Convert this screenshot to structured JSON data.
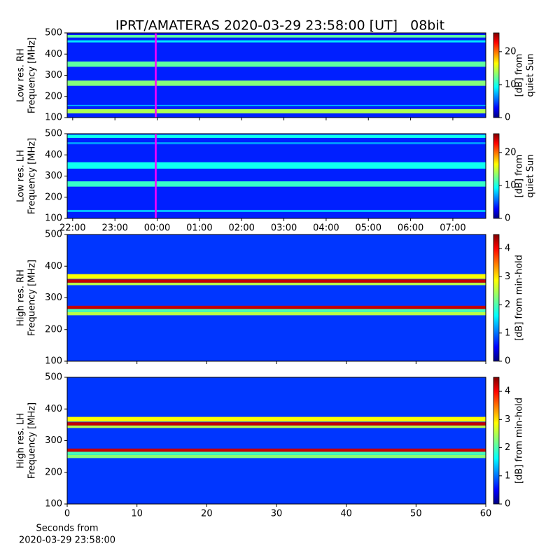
{
  "title": "IPRT/AMATERAS 2020-03-29 23:58:00 [UT]   08bit",
  "chart_data": [
    {
      "type": "heatmap",
      "ylabel": [
        "Low res. RH",
        "Frequency [MHz]"
      ],
      "colorbar_label": [
        "[dB] from",
        "quiet Sun"
      ],
      "xlim": [
        -2.13,
        7.78
      ],
      "xticks": [
        -2,
        -1,
        0,
        1,
        2,
        3,
        4,
        5,
        6,
        7
      ],
      "xticklabels": false,
      "ylim": [
        100,
        500
      ],
      "yticks": [
        100,
        200,
        300,
        400,
        500
      ],
      "zlim": [
        0,
        25.7
      ],
      "zticks": [
        0,
        10,
        20
      ],
      "background": 4,
      "bands": [
        {
          "y": [
            120,
            140
          ],
          "value": 14
        },
        {
          "y": [
            155,
            160
          ],
          "value": 8
        },
        {
          "y": [
            250,
            275
          ],
          "value": 13
        },
        {
          "y": [
            340,
            365
          ],
          "value": 12
        },
        {
          "y": [
            455,
            465
          ],
          "value": 9
        },
        {
          "y": [
            478,
            490
          ],
          "value": 12
        }
      ],
      "marker_x": -0.033,
      "marker_color": "#ff00ff"
    },
    {
      "type": "heatmap",
      "ylabel": [
        "Low res. LH",
        "Frequency [MHz]"
      ],
      "colorbar_label": [
        "[dB] from",
        "quiet Sun"
      ],
      "xlim": [
        -2.13,
        7.78
      ],
      "xticks": [
        {
          "value": -2,
          "label": "22:00"
        },
        {
          "value": -1,
          "label": "23:00"
        },
        {
          "value": 0,
          "label": "00:00"
        },
        {
          "value": 1,
          "label": "01:00"
        },
        {
          "value": 2,
          "label": "02:00"
        },
        {
          "value": 3,
          "label": "03:00"
        },
        {
          "value": 4,
          "label": "04:00"
        },
        {
          "value": 5,
          "label": "05:00"
        },
        {
          "value": 6,
          "label": "06:00"
        },
        {
          "value": 7,
          "label": "07:00"
        }
      ],
      "ylim": [
        100,
        500
      ],
      "yticks": [
        100,
        200,
        300,
        400,
        500
      ],
      "zlim": [
        0,
        25.7
      ],
      "zticks": [
        0,
        10,
        20
      ],
      "background": 4,
      "bands": [
        {
          "y": [
            130,
            140
          ],
          "value": 8
        },
        {
          "y": [
            250,
            275
          ],
          "value": 11
        },
        {
          "y": [
            335,
            365
          ],
          "value": 10
        },
        {
          "y": [
            450,
            460
          ],
          "value": 7
        },
        {
          "y": [
            480,
            495
          ],
          "value": 10
        }
      ],
      "marker_x": -0.033,
      "marker_color": "#ff00ff"
    },
    {
      "type": "heatmap",
      "ylabel": [
        "High res. RH",
        "Frequency [MHz]"
      ],
      "colorbar_label": [
        "[dB] from min-hold"
      ],
      "xlim": [
        0,
        60
      ],
      "xticks": [
        0,
        10,
        20,
        30,
        40,
        50,
        60
      ],
      "xticklabels": false,
      "ylim": [
        100,
        500
      ],
      "yticks": [
        100,
        200,
        300,
        400,
        500
      ],
      "zlim": [
        0,
        4.5
      ],
      "zticks": [
        0,
        1,
        2,
        3,
        4
      ],
      "background": 0.8,
      "bands": [
        {
          "y": [
            245,
            255
          ],
          "value": 2.5
        },
        {
          "y": [
            255,
            265
          ],
          "value": 2
        },
        {
          "y": [
            265,
            275
          ],
          "value": 4.2
        },
        {
          "y": [
            340,
            348
          ],
          "value": 2.5
        },
        {
          "y": [
            348,
            358
          ],
          "value": 4.2
        },
        {
          "y": [
            360,
            375
          ],
          "value": 2.8
        }
      ]
    },
    {
      "type": "heatmap",
      "ylabel": [
        "High res. LH",
        "Frequency [MHz]"
      ],
      "colorbar_label": [
        "[dB] from min-hold"
      ],
      "xlabel": [
        "Seconds from",
        "2020-03-29 23:58:00"
      ],
      "xlim": [
        0,
        60
      ],
      "xticks": [
        0,
        10,
        20,
        30,
        40,
        50,
        60
      ],
      "ylim": [
        100,
        500
      ],
      "yticks": [
        100,
        200,
        300,
        400,
        500
      ],
      "zlim": [
        0,
        4.5
      ],
      "zticks": [
        0,
        1,
        2,
        3,
        4
      ],
      "background": 0.8,
      "bands": [
        {
          "y": [
            245,
            255
          ],
          "value": 2.3
        },
        {
          "y": [
            255,
            265
          ],
          "value": 2
        },
        {
          "y": [
            265,
            275
          ],
          "value": 4.2
        },
        {
          "y": [
            340,
            348
          ],
          "value": 2.5
        },
        {
          "y": [
            348,
            358
          ],
          "value": 4.2
        },
        {
          "y": [
            360,
            375
          ],
          "value": 2.8
        }
      ]
    }
  ]
}
